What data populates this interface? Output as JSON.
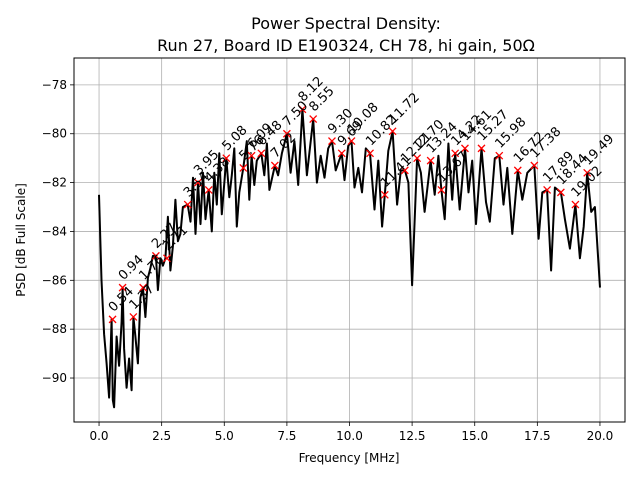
{
  "chart_data": {
    "type": "line",
    "title_line1": "Power Spectral Density:",
    "title_line2": "Run 27, Board ID E190324, CH 78, hi gain, 50Ω",
    "xlabel": "Frequency [MHz]",
    "ylabel": "PSD [dB Full Scale]",
    "xlim": [
      -1.0,
      21.0
    ],
    "ylim": [
      -91.8,
      -76.9
    ],
    "xticks": [
      0.0,
      2.5,
      5.0,
      7.5,
      10.0,
      12.5,
      15.0,
      17.5,
      20.0
    ],
    "xtick_labels": [
      "0.0",
      "2.5",
      "5.0",
      "7.5",
      "10.0",
      "12.5",
      "15.0",
      "17.5",
      "20.0"
    ],
    "yticks": [
      -90,
      -88,
      -86,
      -84,
      -82,
      -80,
      -78
    ],
    "ytick_labels": [
      "−90",
      "−88",
      "−86",
      "−84",
      "−82",
      "−80",
      "−78"
    ],
    "grid": true,
    "line_color": "#000000",
    "marker_color": "#ff0000",
    "series": [
      {
        "x": [
          0.0,
          0.1,
          0.2,
          0.3,
          0.4,
          0.5,
          0.55,
          0.6,
          0.7,
          0.8,
          0.9,
          0.94,
          1.0,
          1.1,
          1.2,
          1.3,
          1.37,
          1.45,
          1.55,
          1.65,
          1.75,
          1.85,
          1.95,
          2.05,
          2.15,
          2.27,
          2.35,
          2.45,
          2.55,
          2.65,
          2.75,
          2.85,
          2.95,
          3.05,
          3.15,
          3.25,
          3.35,
          3.54,
          3.65,
          3.75,
          3.85,
          3.95,
          4.05,
          4.15,
          4.25,
          4.38,
          4.5,
          4.6,
          4.7,
          4.8,
          4.9,
          5.08,
          5.2,
          5.3,
          5.4,
          5.5,
          5.6,
          5.76,
          5.9,
          6.0,
          6.09,
          6.2,
          6.3,
          6.48,
          6.6,
          6.7,
          6.8,
          7.02,
          7.15,
          7.3,
          7.5,
          7.65,
          7.8,
          7.95,
          8.12,
          8.3,
          8.42,
          8.55,
          8.7,
          8.85,
          9.0,
          9.15,
          9.3,
          9.45,
          9.69,
          9.8,
          9.95,
          10.08,
          10.2,
          10.35,
          10.5,
          10.65,
          10.82,
          11.0,
          11.15,
          11.3,
          11.41,
          11.55,
          11.72,
          11.9,
          12.05,
          12.21,
          12.35,
          12.5,
          12.7,
          12.85,
          13.0,
          13.24,
          13.4,
          13.55,
          13.67,
          13.8,
          13.95,
          14.1,
          14.22,
          14.4,
          14.61,
          14.75,
          14.9,
          15.05,
          15.27,
          15.45,
          15.6,
          15.8,
          15.98,
          16.15,
          16.3,
          16.5,
          16.72,
          16.9,
          17.1,
          17.38,
          17.55,
          17.7,
          17.89,
          18.05,
          18.2,
          18.44,
          18.6,
          18.8,
          19.02,
          19.2,
          19.35,
          19.49,
          19.65,
          19.8,
          20.0
        ],
        "y": [
          -82.5,
          -86.0,
          -88.2,
          -89.4,
          -90.8,
          -87.6,
          -90.9,
          -91.2,
          -88.3,
          -89.5,
          -87.7,
          -86.3,
          -88.8,
          -90.4,
          -89.2,
          -90.5,
          -87.5,
          -88.3,
          -89.4,
          -86.7,
          -86.3,
          -87.5,
          -85.9,
          -85.5,
          -85.0,
          -85.0,
          -86.4,
          -85.1,
          -85.4,
          -85.1,
          -83.4,
          -85.6,
          -84.6,
          -82.7,
          -84.4,
          -84.1,
          -83.0,
          -82.9,
          -83.6,
          -81.8,
          -84.1,
          -82.0,
          -83.7,
          -81.6,
          -83.5,
          -82.3,
          -84.0,
          -81.6,
          -82.9,
          -80.8,
          -83.3,
          -81.0,
          -82.6,
          -81.7,
          -80.6,
          -83.8,
          -82.4,
          -81.4,
          -80.3,
          -82.7,
          -80.9,
          -82.1,
          -81.1,
          -80.8,
          -81.7,
          -80.4,
          -82.3,
          -81.3,
          -81.7,
          -80.8,
          -80.0,
          -81.6,
          -80.3,
          -82.1,
          -79.0,
          -81.7,
          -80.6,
          -79.4,
          -82.0,
          -80.9,
          -81.8,
          -80.6,
          -80.3,
          -81.5,
          -80.8,
          -81.9,
          -80.5,
          -80.3,
          -82.2,
          -81.4,
          -82.4,
          -80.6,
          -80.8,
          -83.1,
          -81.1,
          -83.8,
          -82.5,
          -80.7,
          -79.9,
          -82.9,
          -81.5,
          -81.5,
          -82.0,
          -86.2,
          -81.0,
          -81.6,
          -83.2,
          -81.1,
          -82.5,
          -80.9,
          -82.3,
          -83.5,
          -80.4,
          -82.7,
          -80.8,
          -83.1,
          -80.6,
          -82.4,
          -81.1,
          -83.7,
          -80.6,
          -82.8,
          -83.6,
          -81.0,
          -80.9,
          -82.9,
          -81.4,
          -84.1,
          -81.5,
          -82.7,
          -81.6,
          -81.3,
          -84.3,
          -82.4,
          -82.3,
          -85.6,
          -82.2,
          -82.4,
          -83.5,
          -84.7,
          -82.9,
          -85.1,
          -83.8,
          -81.6,
          -83.2,
          -83.0,
          -86.3
        ],
        "peaks_x": [
          0.54,
          0.94,
          1.37,
          1.76,
          2.27,
          2.71,
          3.54,
          3.95,
          4.38,
          5.08,
          5.76,
          6.09,
          6.48,
          7.02,
          7.5,
          8.12,
          8.55,
          9.3,
          9.69,
          10.08,
          10.82,
          11.41,
          11.72,
          12.21,
          12.7,
          13.24,
          13.67,
          14.22,
          14.61,
          15.27,
          15.98,
          16.72,
          17.38,
          17.89,
          18.44,
          19.02,
          19.49
        ],
        "peaks_y": [
          -87.6,
          -86.3,
          -87.5,
          -86.3,
          -85.0,
          -85.1,
          -82.9,
          -82.0,
          -82.3,
          -81.0,
          -81.4,
          -80.9,
          -80.8,
          -81.3,
          -80.0,
          -79.0,
          -79.4,
          -80.3,
          -80.8,
          -80.3,
          -80.8,
          -82.5,
          -79.9,
          -81.5,
          -81.0,
          -81.1,
          -82.3,
          -80.8,
          -80.6,
          -80.6,
          -80.9,
          -81.5,
          -81.3,
          -82.3,
          -82.4,
          -82.9,
          -81.6
        ],
        "peak_labels": [
          "0.54",
          "0.94",
          "1.37",
          "1.76",
          "2.27",
          "2.71",
          "3.54",
          "3.95",
          "4.38",
          "5.08",
          "5.76",
          "6.09",
          "6.48",
          "7.02",
          "7.50",
          "8.12",
          "8.55",
          "9.30",
          "9.69",
          "10.08",
          "10.82",
          "11.41",
          "11.72",
          "12.21",
          "12.70",
          "13.24",
          "13.67",
          "14.22",
          "14.61",
          "15.27",
          "15.98",
          "16.72",
          "17.38",
          "17.89",
          "18.44",
          "19.02",
          "19.49"
        ]
      }
    ]
  }
}
